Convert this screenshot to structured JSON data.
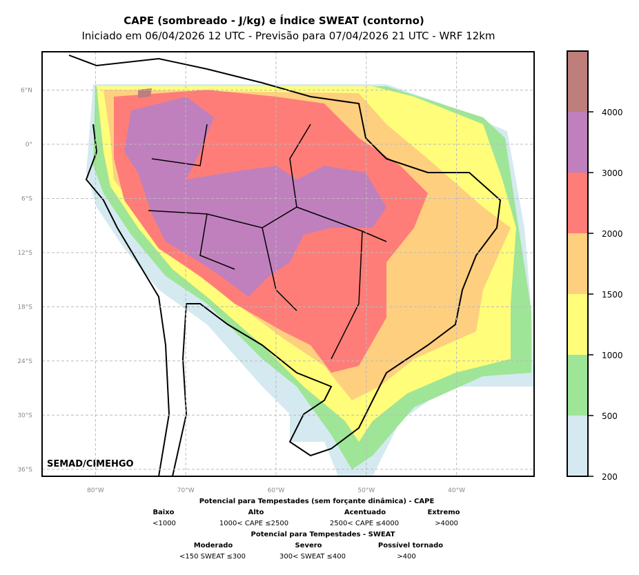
{
  "title": "CAPE (sombreado - J/kg) e Índice SWEAT (contorno)",
  "subtitle": "Iniciado em 06/04/2026 12 UTC - Previsão para 07/04/2026 21 UTC - WRF 12km",
  "watermark": "SEMAD/CIMEHGO",
  "lat_ticks": [
    {
      "value": 6,
      "label": "6°N"
    },
    {
      "value": 0,
      "label": "0°"
    },
    {
      "value": -6,
      "label": "6°S"
    },
    {
      "value": -12,
      "label": "12°S"
    },
    {
      "value": -18,
      "label": "18°S"
    },
    {
      "value": -24,
      "label": "24°S"
    },
    {
      "value": -30,
      "label": "30°S"
    },
    {
      "value": -36,
      "label": "36°S"
    }
  ],
  "lon_ticks": [
    {
      "value": -80,
      "label": "80°W"
    },
    {
      "value": -70,
      "label": "70°W"
    },
    {
      "value": -60,
      "label": "60°W"
    },
    {
      "value": -50,
      "label": "50°W"
    },
    {
      "value": -40,
      "label": "40°W"
    }
  ],
  "colorbar": {
    "levels": [
      200,
      500,
      1000,
      1500,
      2000,
      3000,
      4000
    ],
    "labels": [
      "200",
      "500",
      "1000",
      "1500",
      "2000",
      "3000",
      "4000"
    ],
    "colors": [
      "#d4eaf0",
      "#9ee597",
      "#fffd7a",
      "#fecf7f",
      "#ff7d78",
      "#bf80bd",
      "#be7f7c"
    ]
  },
  "legend": {
    "cape_title": "Potencial para Tempestades (sem forçante dinâmica) - CAPE",
    "cape": [
      {
        "name": "Baixo",
        "range": "<1000"
      },
      {
        "name": "Alto",
        "range": "1000< CAPE ≤2500"
      },
      {
        "name": "Acentuado",
        "range": "2500< CAPE ≤4000"
      },
      {
        "name": "Extremo",
        "range": ">4000"
      }
    ],
    "sweat_title": "Potencial para Tempestades - SWEAT",
    "sweat": [
      {
        "name": "Moderado",
        "range": "<150 SWEAT ≤300"
      },
      {
        "name": "Severo",
        "range": "300< SWEAT ≤400"
      },
      {
        "name": "Possível tornado",
        "range": ">400"
      }
    ]
  }
}
